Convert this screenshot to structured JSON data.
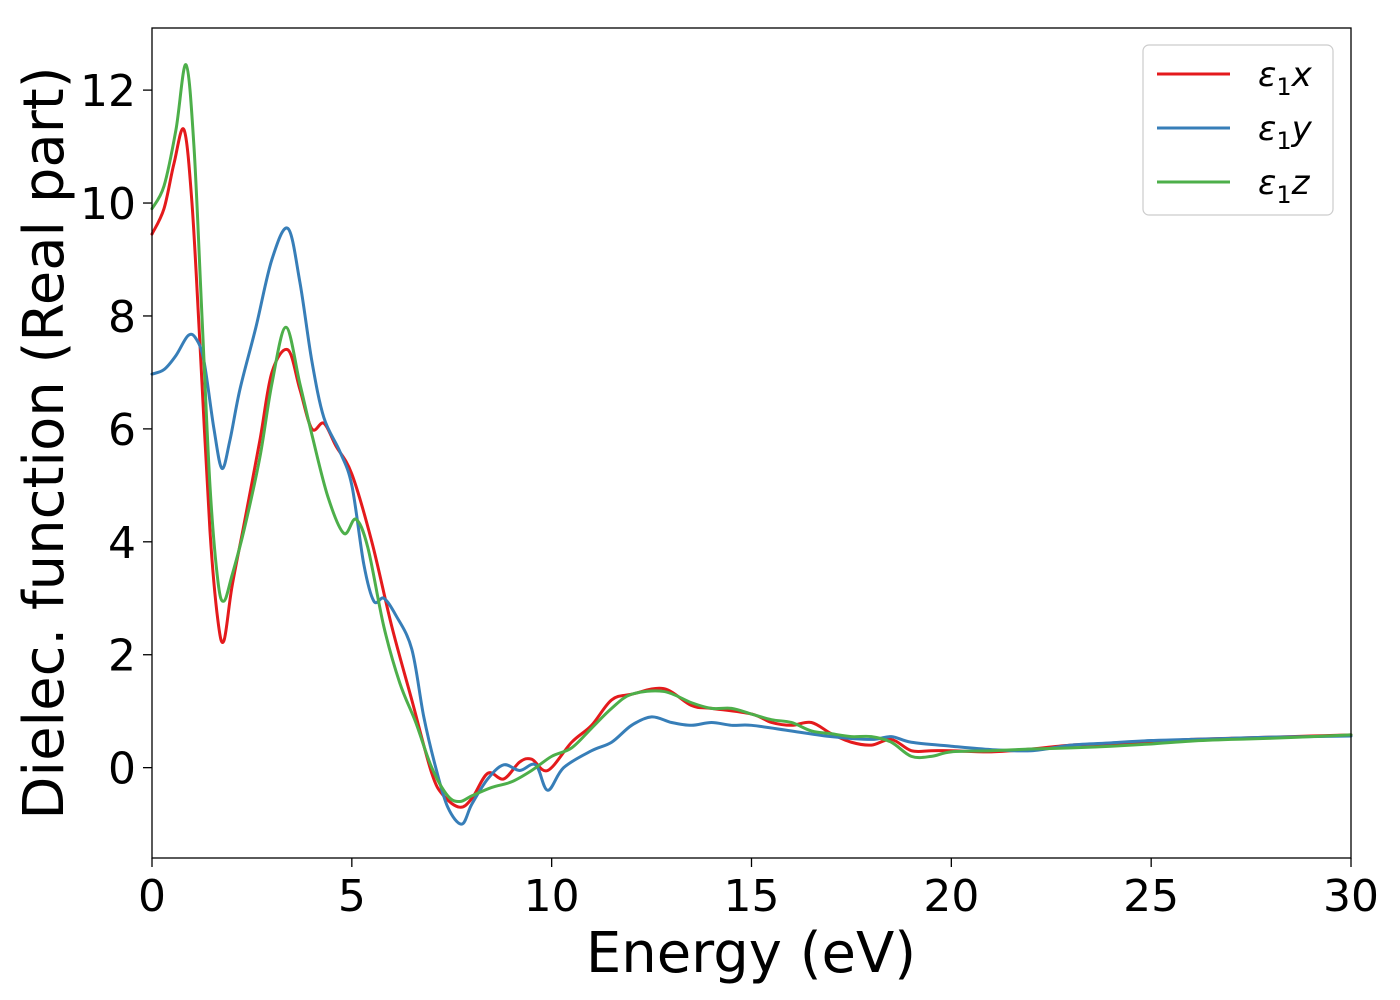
{
  "chart_data": {
    "type": "line",
    "title": "",
    "xlabel": "Energy (eV)",
    "ylabel": "Dielec. function (Real part)",
    "xlim": [
      0,
      30
    ],
    "ylim": [
      -1.6,
      13.1
    ],
    "xticks": [
      0,
      5,
      10,
      15,
      20,
      25,
      30
    ],
    "yticks": [
      0,
      2,
      4,
      6,
      8,
      10,
      12
    ],
    "grid": false,
    "legend_position": "top-right",
    "series": [
      {
        "name": "ε₁x",
        "legend_base": "ε",
        "legend_sub": "1",
        "legend_var": "x",
        "color": "#e41a1c",
        "x": [
          0,
          0.3,
          0.55,
          0.8,
          1.0,
          1.2,
          1.45,
          1.65,
          1.8,
          2.0,
          2.3,
          2.7,
          3.0,
          3.4,
          3.7,
          4.0,
          4.3,
          4.6,
          5.0,
          5.5,
          6.0,
          6.5,
          7.0,
          7.3,
          7.7,
          8.0,
          8.4,
          8.8,
          9.2,
          9.5,
          9.9,
          10.5,
          11.0,
          11.5,
          12.0,
          12.8,
          13.5,
          14.0,
          15.0,
          15.5,
          16.0,
          16.5,
          17.0,
          17.5,
          18.0,
          18.5,
          19.0,
          19.5,
          20.0,
          21.0,
          22.0,
          23.0,
          24.0,
          25.0,
          26.0,
          27.0,
          28.0,
          29.0,
          30.0
        ],
        "y": [
          9.45,
          9.9,
          10.7,
          11.3,
          10.0,
          7.5,
          4.2,
          2.6,
          2.25,
          3.2,
          4.3,
          5.8,
          7.0,
          7.4,
          6.7,
          6.0,
          6.1,
          5.7,
          5.2,
          4.0,
          2.5,
          1.2,
          -0.1,
          -0.5,
          -0.7,
          -0.55,
          -0.1,
          -0.2,
          0.1,
          0.15,
          -0.05,
          0.45,
          0.75,
          1.2,
          1.3,
          1.4,
          1.1,
          1.05,
          0.95,
          0.8,
          0.75,
          0.8,
          0.6,
          0.45,
          0.4,
          0.5,
          0.3,
          0.3,
          0.3,
          0.28,
          0.33,
          0.4,
          0.42,
          0.45,
          0.5,
          0.52,
          0.54,
          0.56,
          0.58
        ]
      },
      {
        "name": "ε₁y",
        "legend_base": "ε",
        "legend_sub": "1",
        "legend_var": "y",
        "color": "#377eb8",
        "x": [
          0,
          0.3,
          0.6,
          0.9,
          1.1,
          1.3,
          1.55,
          1.75,
          1.95,
          2.2,
          2.6,
          3.0,
          3.4,
          3.7,
          4.0,
          4.3,
          4.7,
          5.0,
          5.3,
          5.55,
          5.8,
          6.1,
          6.5,
          6.8,
          7.1,
          7.4,
          7.75,
          8.0,
          8.4,
          8.8,
          9.2,
          9.6,
          9.9,
          10.3,
          11.0,
          11.5,
          12.0,
          12.5,
          13.0,
          13.5,
          14.0,
          14.5,
          15.0,
          16.0,
          17.0,
          18.0,
          18.5,
          19.0,
          20.0,
          21.0,
          22.0,
          23.0,
          24.0,
          25.0,
          26.0,
          27.0,
          28.0,
          29.0,
          30.0
        ],
        "y": [
          6.97,
          7.05,
          7.3,
          7.65,
          7.6,
          7.2,
          6.0,
          5.3,
          5.8,
          6.7,
          7.8,
          9.0,
          9.55,
          8.6,
          7.2,
          6.2,
          5.6,
          5.0,
          3.6,
          2.95,
          3.0,
          2.7,
          2.1,
          0.9,
          0.0,
          -0.7,
          -1.0,
          -0.65,
          -0.2,
          0.05,
          -0.05,
          0.05,
          -0.4,
          0.0,
          0.3,
          0.45,
          0.75,
          0.9,
          0.8,
          0.75,
          0.8,
          0.75,
          0.75,
          0.65,
          0.55,
          0.5,
          0.55,
          0.45,
          0.38,
          0.32,
          0.3,
          0.4,
          0.44,
          0.48,
          0.5,
          0.52,
          0.54,
          0.55,
          0.56
        ]
      },
      {
        "name": "ε₁z",
        "legend_base": "ε",
        "legend_sub": "1",
        "legend_var": "z",
        "color": "#4daf4a",
        "x": [
          0,
          0.3,
          0.6,
          0.85,
          1.05,
          1.25,
          1.45,
          1.65,
          1.8,
          2.0,
          2.3,
          2.7,
          3.0,
          3.35,
          3.7,
          4.0,
          4.4,
          4.8,
          5.1,
          5.4,
          5.8,
          6.2,
          6.6,
          7.0,
          7.4,
          7.7,
          8.0,
          8.5,
          9.0,
          9.5,
          10.0,
          10.5,
          11.0,
          11.5,
          12.0,
          12.8,
          13.5,
          14.0,
          14.5,
          15.0,
          15.5,
          16.0,
          16.5,
          17.0,
          17.5,
          18.0,
          18.5,
          19.0,
          19.5,
          20.0,
          21.0,
          22.0,
          23.0,
          24.0,
          25.0,
          26.0,
          27.0,
          28.0,
          29.0,
          30.0
        ],
        "y": [
          9.9,
          10.3,
          11.3,
          12.45,
          11.0,
          8.0,
          5.0,
          3.3,
          2.95,
          3.4,
          4.2,
          5.5,
          6.8,
          7.8,
          6.8,
          5.9,
          4.8,
          4.15,
          4.4,
          3.9,
          2.5,
          1.5,
          0.8,
          0.0,
          -0.5,
          -0.6,
          -0.5,
          -0.35,
          -0.25,
          -0.05,
          0.2,
          0.35,
          0.7,
          1.05,
          1.3,
          1.35,
          1.15,
          1.05,
          1.05,
          0.95,
          0.85,
          0.8,
          0.65,
          0.6,
          0.55,
          0.55,
          0.45,
          0.2,
          0.2,
          0.28,
          0.3,
          0.33,
          0.35,
          0.38,
          0.42,
          0.47,
          0.5,
          0.52,
          0.55,
          0.58
        ]
      }
    ]
  }
}
